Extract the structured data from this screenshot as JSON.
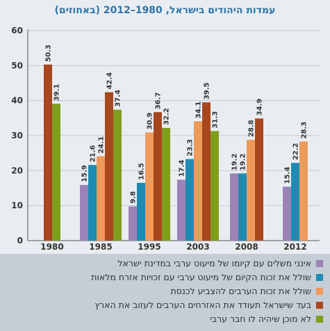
{
  "chart_data": {
    "type": "bar",
    "title": "עמדות היהודים בישראל, 1980–2012 (באחוזים)",
    "categories": [
      "1980",
      "1985",
      "1995",
      "2003",
      "2008",
      "2012"
    ],
    "ylim": [
      0,
      60
    ],
    "yticks": [
      0,
      10,
      20,
      30,
      40,
      50,
      60
    ],
    "grid": true,
    "legend_position": "bottom",
    "series": [
      {
        "name": "אינני משלים עם קיומו של מיעוט ערבי במדינת ישראל",
        "color": "#9b83b7",
        "values": [
          null,
          15.9,
          9.8,
          17.4,
          19.2,
          15.4
        ]
      },
      {
        "name": "שולל את זכות הקיום של מיעוט ערבי עם זכויות אזרח מלאות",
        "color": "#1e8bb3",
        "values": [
          null,
          21.6,
          16.5,
          23.3,
          19.2,
          22.2
        ]
      },
      {
        "name": "שולל את זכות הערבים להצביע לכנסת",
        "color": "#ee9a5a",
        "values": [
          null,
          24.1,
          30.9,
          34.1,
          28.8,
          28.3
        ]
      },
      {
        "name": "בעד שישראל תעודד את האזרחים הערבים לעזוב את הארץ",
        "color": "#a8461e",
        "values": [
          50.3,
          42.4,
          36.7,
          39.5,
          34.9,
          null
        ]
      },
      {
        "name": "לא מוכן שיהיה לו חבר ערבי",
        "color": "#7f9e1e",
        "values": [
          39.1,
          37.4,
          32.2,
          31.3,
          null,
          null
        ]
      }
    ]
  }
}
